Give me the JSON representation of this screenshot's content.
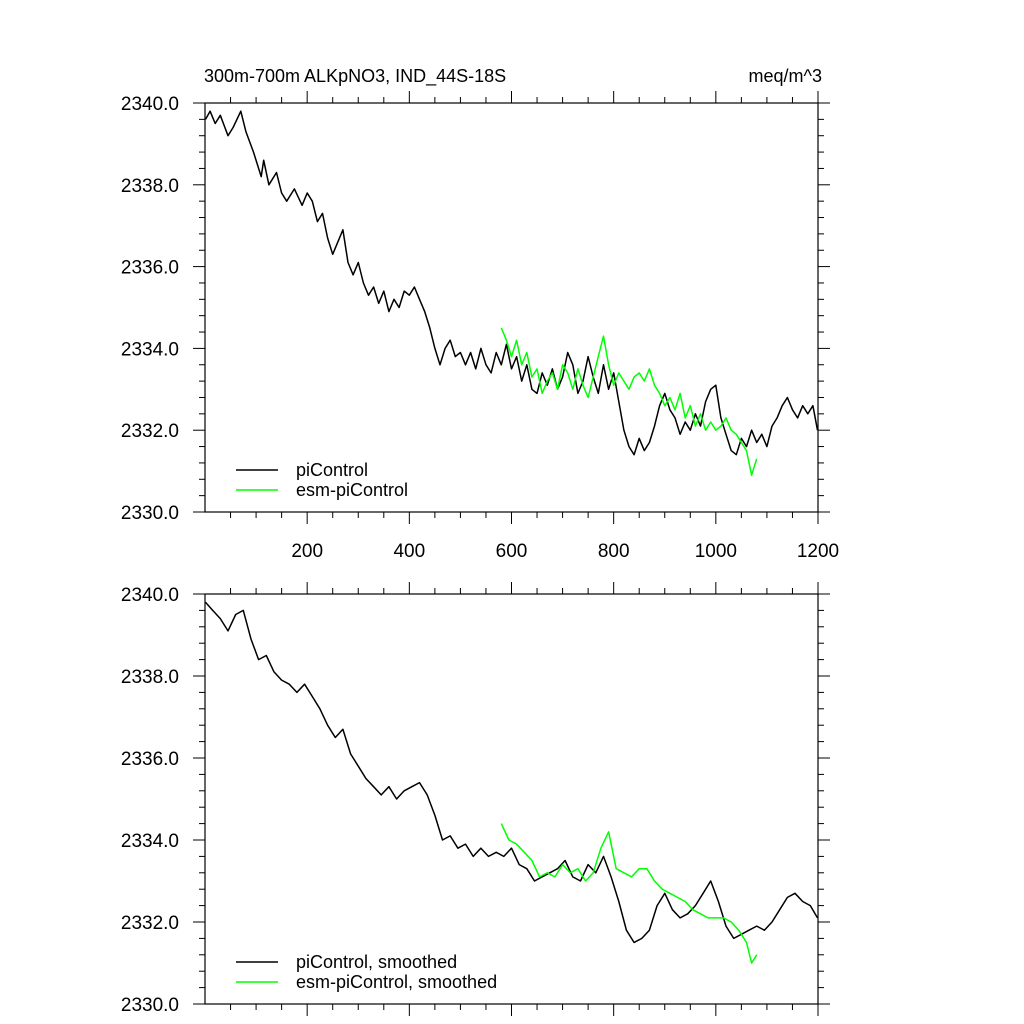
{
  "chart_data": [
    {
      "type": "line",
      "title_left": "300m-700m ALKpNO3, IND_44S-18S",
      "title_right": "meq/m^3",
      "xlim": [
        0,
        1200
      ],
      "ylim": [
        2330,
        2340
      ],
      "yticks": [
        2330,
        2332,
        2334,
        2336,
        2338,
        2340
      ],
      "ytick_labels": [
        "2330.0",
        "2332.0",
        "2334.0",
        "2336.0",
        "2338.0",
        "2340.0"
      ],
      "xticks": [
        200,
        400,
        600,
        800,
        1000,
        1200
      ],
      "xtick_labels": [
        "200",
        "400",
        "600",
        "800",
        "1000",
        "1200"
      ],
      "show_xtick_labels": true,
      "legend_position": "bottom-left",
      "series": [
        {
          "name": "piControl",
          "color": "#000000",
          "x": [
            1,
            10,
            20,
            30,
            45,
            55,
            70,
            80,
            95,
            110,
            115,
            125,
            140,
            150,
            160,
            175,
            190,
            200,
            210,
            220,
            230,
            240,
            250,
            260,
            270,
            280,
            290,
            300,
            310,
            320,
            330,
            340,
            350,
            360,
            370,
            380,
            390,
            400,
            410,
            420,
            430,
            440,
            450,
            460,
            470,
            480,
            490,
            500,
            510,
            520,
            530,
            540,
            550,
            560,
            570,
            580,
            590,
            600,
            610,
            620,
            630,
            640,
            650,
            660,
            670,
            680,
            690,
            700,
            710,
            720,
            730,
            740,
            750,
            760,
            770,
            780,
            790,
            800,
            810,
            820,
            830,
            840,
            850,
            860,
            870,
            880,
            890,
            900,
            910,
            920,
            930,
            940,
            950,
            960,
            970,
            980,
            990,
            1000,
            1010,
            1020,
            1030,
            1040,
            1050,
            1060,
            1070,
            1080,
            1090,
            1100,
            1110,
            1120,
            1130,
            1140,
            1150,
            1160,
            1170,
            1180,
            1190,
            1199
          ],
          "values": [
            2339.6,
            2339.8,
            2339.5,
            2339.7,
            2339.2,
            2339.4,
            2339.8,
            2339.3,
            2338.8,
            2338.2,
            2338.6,
            2338.0,
            2338.3,
            2337.8,
            2337.6,
            2337.9,
            2337.5,
            2337.8,
            2337.6,
            2337.1,
            2337.3,
            2336.7,
            2336.3,
            2336.6,
            2336.9,
            2336.1,
            2335.8,
            2336.1,
            2335.6,
            2335.3,
            2335.5,
            2335.1,
            2335.4,
            2334.9,
            2335.2,
            2335.0,
            2335.4,
            2335.3,
            2335.5,
            2335.2,
            2334.9,
            2334.5,
            2334.0,
            2333.6,
            2334.0,
            2334.2,
            2333.8,
            2333.9,
            2333.6,
            2333.9,
            2333.5,
            2334.0,
            2333.6,
            2333.4,
            2333.9,
            2333.6,
            2334.1,
            2333.5,
            2333.8,
            2333.2,
            2333.6,
            2333.0,
            2332.9,
            2333.4,
            2333.1,
            2333.5,
            2333.0,
            2333.3,
            2333.9,
            2333.6,
            2332.9,
            2333.2,
            2333.8,
            2333.3,
            2332.9,
            2333.6,
            2333.0,
            2333.4,
            2332.7,
            2332.0,
            2331.6,
            2331.4,
            2331.8,
            2331.5,
            2331.7,
            2332.1,
            2332.6,
            2332.9,
            2332.5,
            2332.3,
            2331.9,
            2332.2,
            2332.0,
            2332.4,
            2332.1,
            2332.7,
            2333.0,
            2333.1,
            2332.3,
            2331.9,
            2331.5,
            2331.4,
            2331.8,
            2331.6,
            2332.0,
            2331.7,
            2331.9,
            2331.6,
            2332.1,
            2332.3,
            2332.6,
            2332.8,
            2332.5,
            2332.3,
            2332.6,
            2332.4,
            2332.6,
            2332.0
          ]
        },
        {
          "name": "esm-piControl",
          "color": "#00ff00",
          "x": [
            580,
            590,
            600,
            610,
            620,
            630,
            640,
            650,
            660,
            670,
            680,
            690,
            700,
            710,
            720,
            730,
            740,
            750,
            760,
            770,
            780,
            790,
            800,
            810,
            820,
            830,
            840,
            850,
            860,
            870,
            880,
            890,
            900,
            910,
            920,
            930,
            940,
            950,
            960,
            970,
            980,
            990,
            1000,
            1010,
            1020,
            1030,
            1040,
            1050,
            1060,
            1070,
            1080
          ],
          "values": [
            2334.5,
            2334.2,
            2333.8,
            2334.2,
            2333.6,
            2333.9,
            2333.3,
            2333.5,
            2332.9,
            2333.2,
            2333.4,
            2333.0,
            2333.6,
            2333.4,
            2333.0,
            2333.5,
            2333.1,
            2332.8,
            2333.3,
            2333.8,
            2334.3,
            2333.6,
            2333.1,
            2333.4,
            2333.2,
            2333.0,
            2333.3,
            2333.4,
            2333.2,
            2333.5,
            2333.1,
            2332.9,
            2332.6,
            2332.8,
            2332.5,
            2332.9,
            2332.3,
            2332.6,
            2332.1,
            2332.4,
            2332.0,
            2332.2,
            2332.0,
            2332.1,
            2332.3,
            2332.0,
            2331.9,
            2331.7,
            2331.5,
            2330.9,
            2331.3
          ]
        }
      ]
    },
    {
      "type": "line",
      "xlim": [
        0,
        1200
      ],
      "ylim": [
        2330,
        2340
      ],
      "yticks": [
        2330,
        2332,
        2334,
        2336,
        2338,
        2340
      ],
      "ytick_labels": [
        "2330.0",
        "2332.0",
        "2334.0",
        "2336.0",
        "2338.0",
        "2340.0"
      ],
      "xticks": [
        200,
        400,
        600,
        800,
        1000,
        1200
      ],
      "show_xtick_labels": false,
      "legend_position": "bottom-left",
      "series": [
        {
          "name": "piControl, smoothed",
          "color": "#000000",
          "x": [
            1,
            15,
            30,
            45,
            60,
            75,
            90,
            105,
            120,
            135,
            150,
            165,
            180,
            195,
            210,
            225,
            240,
            255,
            270,
            285,
            300,
            315,
            330,
            345,
            360,
            375,
            390,
            405,
            420,
            435,
            450,
            465,
            480,
            495,
            510,
            525,
            540,
            555,
            570,
            585,
            600,
            615,
            630,
            645,
            660,
            675,
            690,
            705,
            720,
            735,
            750,
            765,
            780,
            795,
            810,
            825,
            840,
            855,
            870,
            885,
            900,
            915,
            930,
            945,
            960,
            975,
            990,
            1005,
            1020,
            1035,
            1050,
            1065,
            1080,
            1095,
            1110,
            1125,
            1140,
            1155,
            1170,
            1185,
            1199
          ],
          "values": [
            2339.8,
            2339.6,
            2339.4,
            2339.1,
            2339.5,
            2339.6,
            2338.9,
            2338.4,
            2338.5,
            2338.1,
            2337.9,
            2337.8,
            2337.6,
            2337.8,
            2337.5,
            2337.2,
            2336.8,
            2336.5,
            2336.7,
            2336.1,
            2335.8,
            2335.5,
            2335.3,
            2335.1,
            2335.3,
            2335.0,
            2335.2,
            2335.3,
            2335.4,
            2335.1,
            2334.6,
            2334.0,
            2334.1,
            2333.8,
            2333.9,
            2333.6,
            2333.8,
            2333.6,
            2333.7,
            2333.6,
            2333.8,
            2333.4,
            2333.3,
            2333.0,
            2333.1,
            2333.2,
            2333.3,
            2333.5,
            2333.1,
            2333.0,
            2333.4,
            2333.2,
            2333.6,
            2333.1,
            2332.5,
            2331.8,
            2331.5,
            2331.6,
            2331.8,
            2332.4,
            2332.7,
            2332.3,
            2332.1,
            2332.2,
            2332.4,
            2332.7,
            2333.0,
            2332.5,
            2331.9,
            2331.6,
            2331.7,
            2331.8,
            2331.9,
            2331.8,
            2332.0,
            2332.3,
            2332.6,
            2332.7,
            2332.5,
            2332.4,
            2332.1
          ]
        },
        {
          "name": "esm-piControl, smoothed",
          "color": "#00ff00",
          "x": [
            580,
            595,
            610,
            625,
            640,
            655,
            670,
            685,
            700,
            715,
            730,
            745,
            760,
            775,
            790,
            805,
            820,
            835,
            850,
            865,
            880,
            895,
            910,
            925,
            940,
            955,
            970,
            985,
            1000,
            1015,
            1030,
            1045,
            1060,
            1070,
            1080
          ],
          "values": [
            2334.4,
            2334.0,
            2333.9,
            2333.7,
            2333.5,
            2333.1,
            2333.2,
            2333.1,
            2333.4,
            2333.2,
            2333.3,
            2333.0,
            2333.2,
            2333.8,
            2334.2,
            2333.3,
            2333.2,
            2333.1,
            2333.3,
            2333.3,
            2333.0,
            2332.8,
            2332.7,
            2332.6,
            2332.5,
            2332.3,
            2332.2,
            2332.1,
            2332.1,
            2332.1,
            2332.0,
            2331.8,
            2331.5,
            2331.0,
            2331.2
          ]
        }
      ]
    }
  ]
}
